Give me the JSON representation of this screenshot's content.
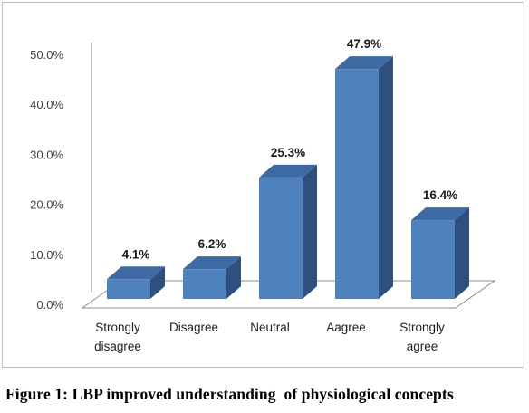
{
  "chart_data": {
    "type": "bar",
    "style": "3d-column",
    "categories": [
      "Strongly disagree",
      "Disagree",
      "Neutral",
      "Aagree",
      "Strongly agree"
    ],
    "values": [
      4.1,
      6.2,
      25.3,
      47.9,
      16.4
    ],
    "data_labels": [
      "4.1%",
      "6.2%",
      "25.3%",
      "47.9%",
      "16.4%"
    ],
    "y_ticks": [
      "0.0%",
      "10.0%",
      "20.0%",
      "30.0%",
      "40.0%",
      "50.0%"
    ],
    "ylim": [
      0,
      50
    ],
    "grid": false,
    "legend": "none",
    "colors": {
      "bar_front": "#4f81bd",
      "bar_side": "#2f4f7f",
      "bar_top": "#3d6aa3"
    }
  },
  "caption": "Figure 1: LBP improved understanding  of physiological concepts"
}
